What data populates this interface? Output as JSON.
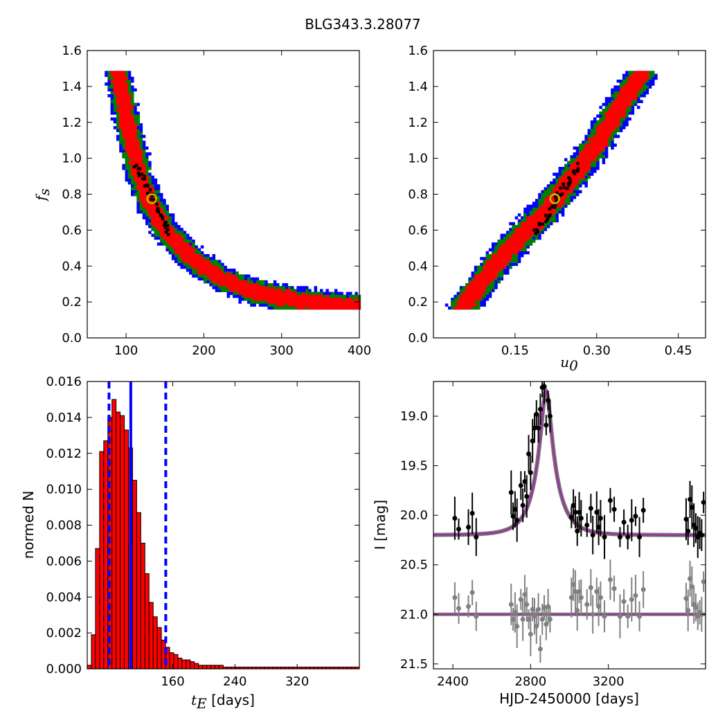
{
  "figure": {
    "title": "BLG343.3.28077"
  },
  "chart_data": [
    {
      "type": "heatmap",
      "id": "p1",
      "xlabel": "",
      "ylabel": "f_s",
      "xlim": [
        50,
        400
      ],
      "ylim": [
        0.0,
        1.6
      ],
      "xticks": [
        100,
        200,
        300,
        400
      ],
      "yticks": [
        0.0,
        0.2,
        0.4,
        0.6,
        0.8,
        1.0,
        1.2,
        1.4,
        1.6
      ],
      "legend": "none",
      "colors": {
        "outer": "#0000ff",
        "middle": "#008000",
        "inner": "#ff0000",
        "core": "#000000",
        "marker": "#bfbf00"
      },
      "ridge": [
        [
          88,
          1.48
        ],
        [
          100,
          1.2
        ],
        [
          115,
          0.92
        ],
        [
          130,
          0.75
        ],
        [
          150,
          0.6
        ],
        [
          180,
          0.46
        ],
        [
          220,
          0.34
        ],
        [
          260,
          0.27
        ],
        [
          300,
          0.23
        ],
        [
          350,
          0.2
        ],
        [
          400,
          0.18
        ]
      ],
      "best_fit": {
        "x": 133,
        "y": 0.775
      }
    },
    {
      "type": "heatmap",
      "id": "p2",
      "xlabel": "u_0",
      "ylabel": "",
      "xlim": [
        0.0,
        0.5
      ],
      "ylim": [
        0.0,
        1.6
      ],
      "xticks": [
        0.15,
        0.3,
        0.45
      ],
      "yticks": [
        0.0,
        0.2,
        0.4,
        0.6,
        0.8,
        1.0,
        1.2,
        1.4,
        1.6
      ],
      "legend": "none",
      "colors": {
        "outer": "#0000ff",
        "middle": "#008000",
        "inner": "#ff0000",
        "core": "#000000",
        "marker": "#bfbf00"
      },
      "ridge": [
        [
          0.05,
          0.17
        ],
        [
          0.1,
          0.37
        ],
        [
          0.15,
          0.55
        ],
        [
          0.2,
          0.7
        ],
        [
          0.22,
          0.775
        ],
        [
          0.26,
          0.93
        ],
        [
          0.3,
          1.1
        ],
        [
          0.34,
          1.3
        ],
        [
          0.38,
          1.48
        ]
      ],
      "best_fit": {
        "x": 0.223,
        "y": 0.775
      }
    },
    {
      "type": "bar",
      "id": "p3",
      "xlabel": "t_E [days]",
      "ylabel": "normed N",
      "xlim": [
        50,
        400
      ],
      "ylim": [
        0.0,
        0.016
      ],
      "xticks": [
        160,
        240,
        320
      ],
      "yticks": [
        0.0,
        0.002,
        0.004,
        0.006,
        0.008,
        0.01,
        0.012,
        0.014,
        0.016
      ],
      "legend": "none",
      "bin_start": 50,
      "bin_width": 5.3,
      "values": [
        0.0002,
        0.0019,
        0.0067,
        0.0121,
        0.0127,
        0.014,
        0.015,
        0.0143,
        0.0141,
        0.0133,
        0.0123,
        0.0105,
        0.0087,
        0.007,
        0.0053,
        0.0037,
        0.0029,
        0.0023,
        0.0016,
        0.0012,
        0.0009,
        0.0008,
        0.0006,
        0.0005,
        0.0005,
        0.0004,
        0.0003,
        0.0002,
        0.0002,
        0.0002,
        0.0002,
        0.0002,
        0.0002,
        0.0001,
        0.0001,
        0.0001,
        0.0001,
        0.0001,
        0.0001,
        0.0001,
        0.0001,
        0.0001,
        0.0001,
        0.0001,
        0.0001,
        0.0001,
        0.0001,
        0.0001,
        0.0001,
        0.0001,
        0.0001,
        0.0001,
        0.0001,
        0.0001,
        0.0001,
        0.0001,
        0.0001,
        0.0001,
        0.0001,
        0.0001,
        0.0001,
        0.0001,
        0.0001,
        0.0001,
        0.0001,
        0.0001
      ],
      "bar_color": "#ff0000",
      "median": 106,
      "bounds": [
        78,
        151
      ]
    },
    {
      "type": "scatter",
      "id": "p4",
      "xlabel": "HJD-2450000 [days]",
      "ylabel": "I [mag]",
      "xlim": [
        2300,
        3700
      ],
      "ylim": [
        21.55,
        18.65
      ],
      "xticks": [
        2400,
        2800,
        3200
      ],
      "yticks": [
        19.0,
        19.5,
        20.0,
        20.5,
        21.0,
        21.5
      ],
      "legend": "none",
      "model": {
        "t0": 2880,
        "tE": 106,
        "u0": 0.22,
        "fs": 0.775,
        "baseline": 20.2,
        "color": "#9b30a0"
      },
      "residual_level": 21.0,
      "series": [
        {
          "name": "",
          "color": "#000000",
          "x": [
            2410,
            2430,
            2480,
            2500,
            2520,
            2700,
            2710,
            2720,
            2730,
            2750,
            2760,
            2770,
            2780,
            2790,
            2800,
            2810,
            2820,
            2830,
            2840,
            2850,
            2860,
            2870,
            2880,
            2890,
            2900,
            3010,
            3020,
            3030,
            3040,
            3050,
            3060,
            3090,
            3110,
            3120,
            3140,
            3150,
            3160,
            3180,
            3210,
            3230,
            3260,
            3280,
            3300,
            3320,
            3340,
            3360,
            3380,
            3600,
            3610,
            3620,
            3630,
            3640,
            3650,
            3660,
            3670,
            3680,
            3690
          ],
          "y": [
            20.03,
            20.14,
            20.12,
            19.98,
            20.22,
            19.77,
            20.01,
            19.94,
            20.05,
            19.7,
            19.9,
            19.66,
            19.81,
            19.38,
            19.57,
            19.25,
            19.12,
            18.98,
            19.12,
            18.93,
            18.71,
            18.7,
            19.09,
            18.84,
            19.0,
            20.02,
            19.9,
            19.97,
            20.16,
            19.97,
            20.03,
            20.1,
            19.93,
            20.2,
            19.97,
            20.12,
            20.03,
            20.22,
            19.85,
            19.94,
            20.22,
            20.07,
            20.22,
            20.05,
            20.01,
            20.22,
            19.95,
            20.04,
            20.16,
            19.84,
            19.92,
            20.1,
            20.13,
            20.22,
            20.18,
            20.2,
            19.87
          ]
        },
        {
          "name": "",
          "color": "#808080",
          "x": [
            2410,
            2430,
            2480,
            2500,
            2520,
            2700,
            2710,
            2720,
            2730,
            2750,
            2760,
            2770,
            2780,
            2790,
            2800,
            2810,
            2820,
            2830,
            2840,
            2850,
            2860,
            2870,
            2880,
            2890,
            2900,
            3010,
            3020,
            3030,
            3040,
            3050,
            3060,
            3090,
            3110,
            3120,
            3140,
            3150,
            3160,
            3180,
            3210,
            3230,
            3260,
            3280,
            3300,
            3320,
            3340,
            3360,
            3380,
            3600,
            3610,
            3620,
            3630,
            3640,
            3650,
            3660,
            3670,
            3680,
            3690
          ],
          "y": [
            20.83,
            20.94,
            20.92,
            20.78,
            21.02,
            20.9,
            21.05,
            20.98,
            21.12,
            20.85,
            21.05,
            20.8,
            20.9,
            21.05,
            21.2,
            20.95,
            21.02,
            21.12,
            20.95,
            21.35,
            21.05,
            20.93,
            21.1,
            20.92,
            21.05,
            20.83,
            20.7,
            20.77,
            20.96,
            20.77,
            20.83,
            20.9,
            20.73,
            21.0,
            20.77,
            20.92,
            20.83,
            21.02,
            20.65,
            20.74,
            21.02,
            20.87,
            21.02,
            20.85,
            20.81,
            21.02,
            20.75,
            20.84,
            20.96,
            20.64,
            20.72,
            20.9,
            20.93,
            21.02,
            20.98,
            21.0,
            20.67
          ]
        }
      ]
    }
  ]
}
